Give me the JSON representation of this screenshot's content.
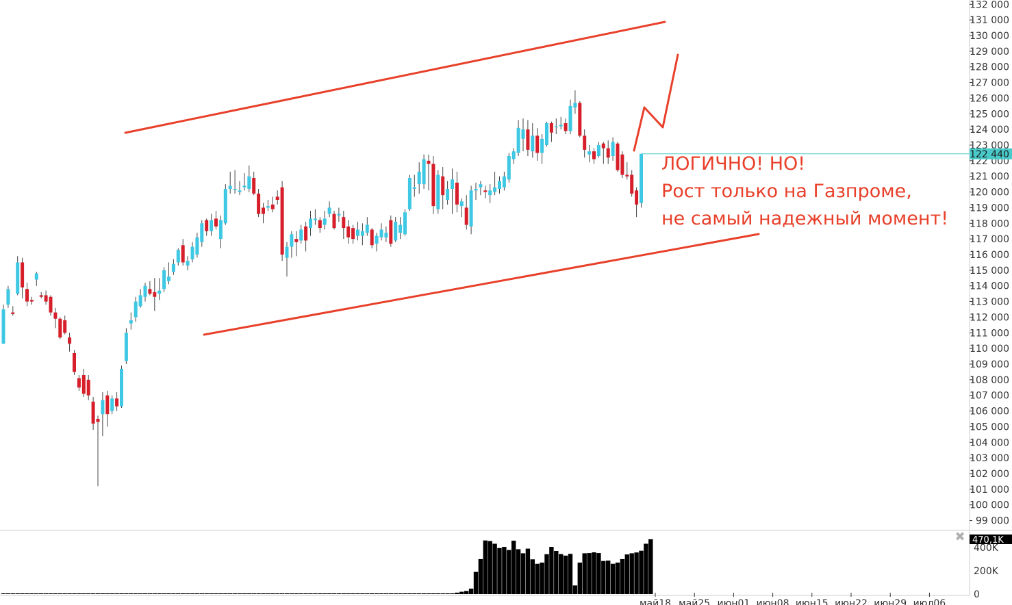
{
  "colors": {
    "up": "#3ec8e3",
    "down": "#d61f2a",
    "wick": "#444444",
    "trend": "#e8402a",
    "last_price_line": "#49c9c9",
    "last_price_bg": "#49c9c9",
    "volume": "#000000",
    "axis_text": "#333333",
    "grid": "#cccccc"
  },
  "annotation": {
    "line1": "ЛОГИЧНО! НО!",
    "line2": "Рост только на Газпроме,",
    "line3": "не самый надежный момент!"
  },
  "close_glyph": "✖",
  "chart_data": [
    {
      "type": "candlestick",
      "title": "",
      "ylim": [
        98500,
        132100
      ],
      "y_ticks": [
        99000,
        100000,
        101000,
        102000,
        103000,
        104000,
        105000,
        106000,
        107000,
        108000,
        109000,
        110000,
        111000,
        112000,
        113000,
        114000,
        115000,
        116000,
        117000,
        118000,
        119000,
        120000,
        121000,
        122000,
        123000,
        124000,
        125000,
        126000,
        127000,
        128000,
        129000,
        130000,
        131000,
        132000
      ],
      "y_tick_labels": [
        "99 000",
        "100 000",
        "101 000",
        "102 000",
        "103 000",
        "104 000",
        "105 000",
        "106 000",
        "107 000",
        "108 000",
        "109 000",
        "110 000",
        "111 000",
        "112 000",
        "113 000",
        "114 000",
        "115 000",
        "116 000",
        "117 000",
        "118 000",
        "119 000",
        "120 000",
        "121 000",
        "122 000",
        "123 000",
        "124 000",
        "125 000",
        "126 000",
        "127 000",
        "128 000",
        "129 000",
        "130 000",
        "131 000",
        "132 000"
      ],
      "last_price": 122440,
      "last_price_label": "122 440",
      "candles": [
        {
          "o": 110300,
          "h": 112800,
          "l": 110300,
          "c": 112500
        },
        {
          "o": 112800,
          "h": 114000,
          "l": 112600,
          "c": 113800
        },
        {
          "o": 112300,
          "h": 112700,
          "l": 112100,
          "c": 112200
        },
        {
          "o": 113500,
          "h": 115900,
          "l": 113400,
          "c": 115500
        },
        {
          "o": 115500,
          "h": 115800,
          "l": 113200,
          "c": 113900
        },
        {
          "o": 113800,
          "h": 114200,
          "l": 112700,
          "c": 113000
        },
        {
          "o": 113100,
          "h": 113300,
          "l": 112800,
          "c": 113000
        },
        {
          "o": 114400,
          "h": 114900,
          "l": 114000,
          "c": 114800
        },
        {
          "o": 113400,
          "h": 113600,
          "l": 113200,
          "c": 113300
        },
        {
          "o": 113400,
          "h": 113700,
          "l": 112800,
          "c": 113000
        },
        {
          "o": 113300,
          "h": 113400,
          "l": 112100,
          "c": 112300
        },
        {
          "o": 112300,
          "h": 112600,
          "l": 111300,
          "c": 111900
        },
        {
          "o": 111900,
          "h": 112000,
          "l": 110600,
          "c": 110700
        },
        {
          "o": 111800,
          "h": 112100,
          "l": 110900,
          "c": 111000
        },
        {
          "o": 110700,
          "h": 111000,
          "l": 109800,
          "c": 110300
        },
        {
          "o": 109700,
          "h": 109900,
          "l": 108300,
          "c": 108500
        },
        {
          "o": 108100,
          "h": 108300,
          "l": 107300,
          "c": 107500
        },
        {
          "o": 108300,
          "h": 108700,
          "l": 106900,
          "c": 107100
        },
        {
          "o": 108000,
          "h": 108300,
          "l": 106700,
          "c": 107000
        },
        {
          "o": 106600,
          "h": 106900,
          "l": 104800,
          "c": 105200
        },
        {
          "o": 105500,
          "h": 105700,
          "l": 101200,
          "c": 105300
        },
        {
          "o": 105800,
          "h": 107200,
          "l": 104400,
          "c": 106700
        },
        {
          "o": 107000,
          "h": 107300,
          "l": 105000,
          "c": 105800
        },
        {
          "o": 106000,
          "h": 107000,
          "l": 105800,
          "c": 106800
        },
        {
          "o": 106800,
          "h": 107200,
          "l": 106000,
          "c": 106300
        },
        {
          "o": 106300,
          "h": 108900,
          "l": 106200,
          "c": 108700
        },
        {
          "o": 109200,
          "h": 111300,
          "l": 109000,
          "c": 111000
        },
        {
          "o": 111600,
          "h": 112300,
          "l": 111200,
          "c": 111800
        },
        {
          "o": 112000,
          "h": 113300,
          "l": 111700,
          "c": 113000
        },
        {
          "o": 112700,
          "h": 113800,
          "l": 112600,
          "c": 113400
        },
        {
          "o": 113300,
          "h": 114200,
          "l": 113000,
          "c": 114000
        },
        {
          "o": 113800,
          "h": 114300,
          "l": 113400,
          "c": 113500
        },
        {
          "o": 113600,
          "h": 114500,
          "l": 112400,
          "c": 113300
        },
        {
          "o": 113500,
          "h": 114500,
          "l": 113100,
          "c": 113700
        },
        {
          "o": 113800,
          "h": 115200,
          "l": 113600,
          "c": 115000
        },
        {
          "o": 114300,
          "h": 115500,
          "l": 114100,
          "c": 114600
        },
        {
          "o": 114900,
          "h": 115700,
          "l": 114700,
          "c": 115400
        },
        {
          "o": 115500,
          "h": 116400,
          "l": 115300,
          "c": 116300
        },
        {
          "o": 116600,
          "h": 117000,
          "l": 115300,
          "c": 115500
        },
        {
          "o": 115300,
          "h": 115900,
          "l": 115000,
          "c": 115600
        },
        {
          "o": 115700,
          "h": 116800,
          "l": 115500,
          "c": 116500
        },
        {
          "o": 116000,
          "h": 117400,
          "l": 115800,
          "c": 117100
        },
        {
          "o": 116800,
          "h": 118200,
          "l": 116500,
          "c": 118000
        },
        {
          "o": 118200,
          "h": 118300,
          "l": 117200,
          "c": 117500
        },
        {
          "o": 117500,
          "h": 118600,
          "l": 117200,
          "c": 118200
        },
        {
          "o": 118300,
          "h": 118800,
          "l": 117600,
          "c": 117800
        },
        {
          "o": 117000,
          "h": 118500,
          "l": 116400,
          "c": 118200
        },
        {
          "o": 118000,
          "h": 120500,
          "l": 117900,
          "c": 120200
        },
        {
          "o": 120200,
          "h": 121300,
          "l": 119900,
          "c": 120400
        },
        {
          "o": 120200,
          "h": 121400,
          "l": 119900,
          "c": 120200
        },
        {
          "o": 120000,
          "h": 120700,
          "l": 119800,
          "c": 120100
        },
        {
          "o": 120300,
          "h": 121200,
          "l": 120100,
          "c": 120400
        },
        {
          "o": 120200,
          "h": 121700,
          "l": 120000,
          "c": 121000
        },
        {
          "o": 120900,
          "h": 121300,
          "l": 119800,
          "c": 119900
        },
        {
          "o": 119900,
          "h": 120200,
          "l": 118400,
          "c": 118600
        },
        {
          "o": 119000,
          "h": 119300,
          "l": 118000,
          "c": 118600
        },
        {
          "o": 119000,
          "h": 119500,
          "l": 118800,
          "c": 119100
        },
        {
          "o": 119200,
          "h": 119700,
          "l": 118700,
          "c": 118900
        },
        {
          "o": 119700,
          "h": 120100,
          "l": 119200,
          "c": 119500
        },
        {
          "o": 120300,
          "h": 120700,
          "l": 115600,
          "c": 116000
        },
        {
          "o": 115800,
          "h": 116800,
          "l": 114600,
          "c": 116500
        },
        {
          "o": 116500,
          "h": 117500,
          "l": 115800,
          "c": 117300
        },
        {
          "o": 117000,
          "h": 117500,
          "l": 115900,
          "c": 116800
        },
        {
          "o": 116900,
          "h": 117900,
          "l": 116700,
          "c": 117600
        },
        {
          "o": 117800,
          "h": 118100,
          "l": 116200,
          "c": 116900
        },
        {
          "o": 117700,
          "h": 118800,
          "l": 117200,
          "c": 118300
        },
        {
          "o": 118200,
          "h": 118900,
          "l": 117900,
          "c": 118300
        },
        {
          "o": 118200,
          "h": 118400,
          "l": 117400,
          "c": 117700
        },
        {
          "o": 117900,
          "h": 118800,
          "l": 117600,
          "c": 118300
        },
        {
          "o": 118600,
          "h": 119400,
          "l": 118400,
          "c": 119000
        },
        {
          "o": 118600,
          "h": 118800,
          "l": 117600,
          "c": 117700
        },
        {
          "o": 118500,
          "h": 119000,
          "l": 118100,
          "c": 118600
        },
        {
          "o": 118400,
          "h": 118800,
          "l": 117000,
          "c": 117700
        },
        {
          "o": 117800,
          "h": 118200,
          "l": 116700,
          "c": 117100
        },
        {
          "o": 117700,
          "h": 117900,
          "l": 116700,
          "c": 117000
        },
        {
          "o": 117200,
          "h": 118100,
          "l": 116900,
          "c": 117600
        },
        {
          "o": 117200,
          "h": 118000,
          "l": 116600,
          "c": 117500
        },
        {
          "o": 117400,
          "h": 118400,
          "l": 117200,
          "c": 117900
        },
        {
          "o": 117600,
          "h": 117700,
          "l": 116400,
          "c": 116600
        },
        {
          "o": 116700,
          "h": 117400,
          "l": 116200,
          "c": 117200
        },
        {
          "o": 117100,
          "h": 118000,
          "l": 116900,
          "c": 117600
        },
        {
          "o": 117100,
          "h": 117800,
          "l": 116800,
          "c": 117400
        },
        {
          "o": 118200,
          "h": 118500,
          "l": 116500,
          "c": 116700
        },
        {
          "o": 116900,
          "h": 118400,
          "l": 116800,
          "c": 118100
        },
        {
          "o": 117400,
          "h": 118400,
          "l": 117000,
          "c": 117900
        },
        {
          "o": 117300,
          "h": 118900,
          "l": 117200,
          "c": 118700
        },
        {
          "o": 118900,
          "h": 121100,
          "l": 118800,
          "c": 120900
        },
        {
          "o": 120200,
          "h": 121100,
          "l": 119700,
          "c": 120300
        },
        {
          "o": 120500,
          "h": 121900,
          "l": 119900,
          "c": 121300
        },
        {
          "o": 120500,
          "h": 122400,
          "l": 120200,
          "c": 122100
        },
        {
          "o": 122000,
          "h": 122400,
          "l": 120100,
          "c": 121800
        },
        {
          "o": 121800,
          "h": 122300,
          "l": 118600,
          "c": 119100
        },
        {
          "o": 118900,
          "h": 121400,
          "l": 118600,
          "c": 121100
        },
        {
          "o": 121000,
          "h": 121600,
          "l": 118900,
          "c": 119800
        },
        {
          "o": 119500,
          "h": 120700,
          "l": 119200,
          "c": 120200
        },
        {
          "o": 120200,
          "h": 121500,
          "l": 118600,
          "c": 120800
        },
        {
          "o": 120600,
          "h": 121300,
          "l": 118700,
          "c": 119200
        },
        {
          "o": 119100,
          "h": 119600,
          "l": 118400,
          "c": 119400
        },
        {
          "o": 119000,
          "h": 119800,
          "l": 117600,
          "c": 117900
        },
        {
          "o": 117800,
          "h": 120400,
          "l": 117300,
          "c": 120100
        },
        {
          "o": 120100,
          "h": 120600,
          "l": 119500,
          "c": 120200
        },
        {
          "o": 120300,
          "h": 120700,
          "l": 119800,
          "c": 120500
        },
        {
          "o": 120100,
          "h": 120400,
          "l": 119600,
          "c": 120000
        },
        {
          "o": 119800,
          "h": 120500,
          "l": 119300,
          "c": 120100
        },
        {
          "o": 120000,
          "h": 121300,
          "l": 119800,
          "c": 120300
        },
        {
          "o": 120200,
          "h": 121000,
          "l": 119900,
          "c": 120700
        },
        {
          "o": 120300,
          "h": 121300,
          "l": 120100,
          "c": 121000
        },
        {
          "o": 120800,
          "h": 122500,
          "l": 120600,
          "c": 122300
        },
        {
          "o": 122100,
          "h": 122800,
          "l": 121800,
          "c": 122600
        },
        {
          "o": 122500,
          "h": 124600,
          "l": 122300,
          "c": 124100
        },
        {
          "o": 123400,
          "h": 124700,
          "l": 122600,
          "c": 124000
        },
        {
          "o": 124000,
          "h": 124600,
          "l": 122300,
          "c": 122700
        },
        {
          "o": 122600,
          "h": 124400,
          "l": 122200,
          "c": 123600
        },
        {
          "o": 123600,
          "h": 124100,
          "l": 122000,
          "c": 122500
        },
        {
          "o": 122500,
          "h": 123700,
          "l": 121800,
          "c": 123400
        },
        {
          "o": 123000,
          "h": 124500,
          "l": 122900,
          "c": 124400
        },
        {
          "o": 124400,
          "h": 124500,
          "l": 123200,
          "c": 123800
        },
        {
          "o": 124200,
          "h": 124700,
          "l": 123700,
          "c": 124200
        },
        {
          "o": 124200,
          "h": 124800,
          "l": 124000,
          "c": 124300
        },
        {
          "o": 124400,
          "h": 124700,
          "l": 123700,
          "c": 123900
        },
        {
          "o": 123900,
          "h": 125900,
          "l": 123700,
          "c": 125500
        },
        {
          "o": 125400,
          "h": 126500,
          "l": 125000,
          "c": 125700
        },
        {
          "o": 125700,
          "h": 125800,
          "l": 123500,
          "c": 123600
        },
        {
          "o": 123600,
          "h": 124000,
          "l": 122200,
          "c": 122700
        },
        {
          "o": 122400,
          "h": 123000,
          "l": 121900,
          "c": 122600
        },
        {
          "o": 122600,
          "h": 122800,
          "l": 121800,
          "c": 122100
        },
        {
          "o": 122300,
          "h": 123200,
          "l": 122200,
          "c": 123000
        },
        {
          "o": 123100,
          "h": 123200,
          "l": 121800,
          "c": 122800
        },
        {
          "o": 122800,
          "h": 123300,
          "l": 121800,
          "c": 122200
        },
        {
          "o": 122300,
          "h": 123500,
          "l": 122000,
          "c": 123200
        },
        {
          "o": 123100,
          "h": 123200,
          "l": 121300,
          "c": 121400
        },
        {
          "o": 122400,
          "h": 122600,
          "l": 120900,
          "c": 121100
        },
        {
          "o": 121100,
          "h": 121900,
          "l": 120800,
          "c": 121000
        },
        {
          "o": 121100,
          "h": 121400,
          "l": 119700,
          "c": 119900
        },
        {
          "o": 120100,
          "h": 120300,
          "l": 118400,
          "c": 119200
        },
        {
          "o": 119300,
          "h": 122440,
          "l": 119000,
          "c": 122440
        }
      ]
    },
    {
      "type": "bar",
      "title": "volume",
      "ylim": [
        0,
        470000
      ],
      "y_ticks": [
        0,
        200000,
        400000
      ],
      "y_tick_labels": [
        "0",
        "200K",
        "400K"
      ],
      "last_value_label": "470,1K",
      "values": [
        6000,
        6000,
        6000,
        6000,
        6000,
        6000,
        6000,
        6000,
        6000,
        6000,
        6000,
        6000,
        6000,
        6000,
        6000,
        6000,
        6000,
        6000,
        6000,
        6000,
        6000,
        6000,
        6000,
        6000,
        6000,
        6000,
        6000,
        6000,
        6000,
        6000,
        6000,
        6000,
        6000,
        6000,
        6000,
        6000,
        6000,
        6000,
        6000,
        6000,
        6000,
        6000,
        6000,
        6000,
        6000,
        6000,
        6000,
        6000,
        6000,
        6000,
        6000,
        6000,
        6000,
        6000,
        6000,
        6000,
        6000,
        6000,
        6000,
        6000,
        6000,
        6000,
        6000,
        6000,
        6000,
        6000,
        6000,
        6000,
        6000,
        6000,
        6000,
        6000,
        6000,
        6000,
        6000,
        6000,
        6000,
        6000,
        6000,
        6000,
        6000,
        6000,
        6000,
        6000,
        6000,
        6000,
        6000,
        6000,
        6000,
        6000,
        6000,
        6000,
        6000,
        6000,
        6000,
        6000,
        12000,
        20000,
        26000,
        46000,
        190000,
        300000,
        460000,
        455000,
        432000,
        395000,
        405000,
        378000,
        458000,
        385000,
        350000,
        390000,
        298000,
        260000,
        270000,
        342000,
        405000,
        370000,
        343000,
        330000,
        345000,
        74000,
        270000,
        350000,
        352000,
        358000,
        352000,
        284000,
        287000,
        260000,
        270000,
        300000,
        340000,
        350000,
        357000,
        372000,
        432000,
        470100
      ],
      "x_tick_labels": [
        "май18",
        "май25",
        "июн01",
        "июн08",
        "июн15",
        "июн22",
        "июн29",
        "июл06"
      ]
    }
  ]
}
